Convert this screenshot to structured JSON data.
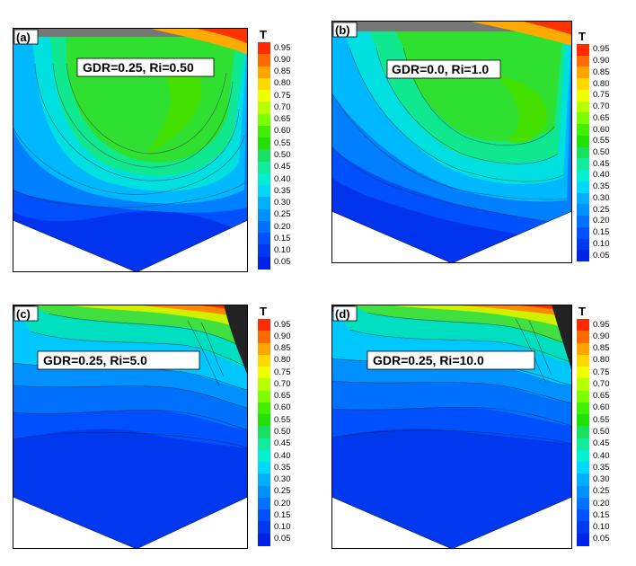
{
  "colorbar": {
    "title": "T",
    "levels": [
      "0.95",
      "0.90",
      "0.85",
      "0.80",
      "0.75",
      "0.70",
      "0.65",
      "0.60",
      "0.55",
      "0.50",
      "0.45",
      "0.40",
      "0.35",
      "0.30",
      "0.25",
      "0.20",
      "0.15",
      "0.10",
      "0.05"
    ],
    "colors": [
      "#ff2a00",
      "#ff6a00",
      "#ffa500",
      "#ffd800",
      "#f0ff00",
      "#b8ff00",
      "#7cff00",
      "#40f000",
      "#22e000",
      "#18e060",
      "#10ec9c",
      "#00f0d0",
      "#00d8ff",
      "#00b0ff",
      "#0090ff",
      "#0070ff",
      "#0050ff",
      "#0038f0",
      "#0022e8"
    ]
  },
  "panels": [
    {
      "tag": "(a)",
      "label": "GDR=0.25, Ri=0.50"
    },
    {
      "tag": "(b)",
      "label": "GDR=0.0, Ri=1.0"
    },
    {
      "tag": "(c)",
      "label": "GDR=0.25, Ri=5.0"
    },
    {
      "tag": "(d)",
      "label": "GDR=0.25, Ri=10.0"
    }
  ]
}
